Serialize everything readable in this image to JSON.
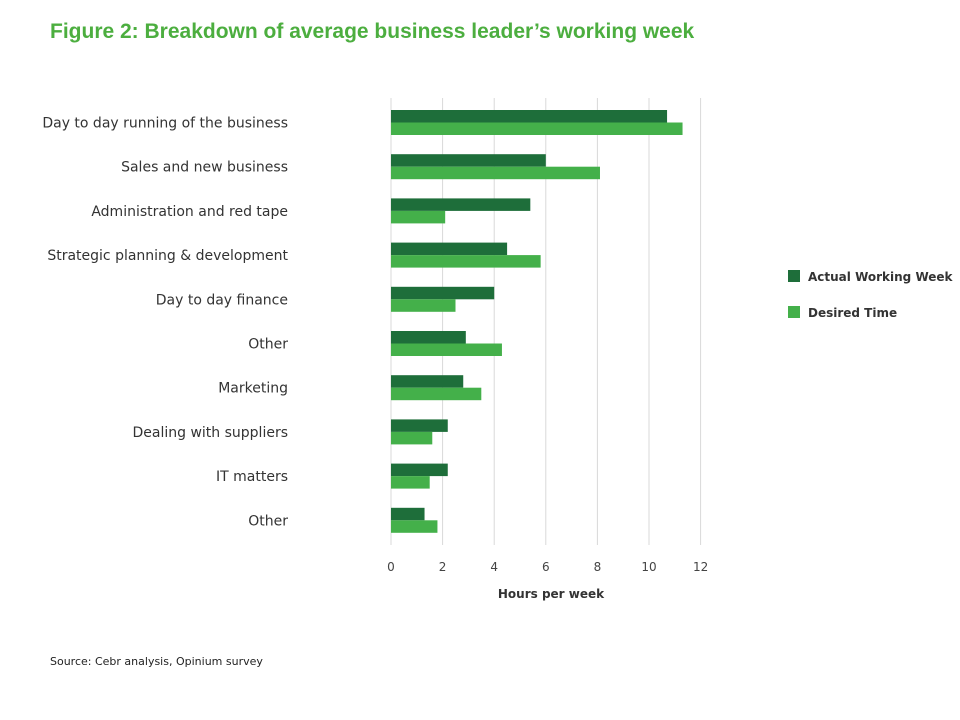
{
  "title": "Figure 2: Breakdown of average business leader’s working week",
  "source": "Source: Cebr analysis, Opinium survey",
  "colors": {
    "title": "#4cae3f",
    "actual": "#1e6e3a",
    "desired": "#44b04a",
    "grid": "#d9d9d9"
  },
  "chart_data": {
    "type": "bar",
    "orientation": "horizontal",
    "categories": [
      "Day to day running of the business",
      "Sales and new business",
      "Administration and red tape",
      "Strategic planning & development",
      "Day to day finance",
      "Other",
      "Marketing",
      "Dealing with suppliers",
      "IT matters",
      "Other"
    ],
    "series": [
      {
        "name": "Actual Working Week",
        "values": [
          10.7,
          6.0,
          5.4,
          4.5,
          4.0,
          2.9,
          2.8,
          2.2,
          2.2,
          1.3
        ]
      },
      {
        "name": "Desired Time",
        "values": [
          11.3,
          8.1,
          2.1,
          5.8,
          2.5,
          4.3,
          3.5,
          1.6,
          1.5,
          1.8
        ]
      }
    ],
    "xlabel": "Hours per week",
    "xlim": [
      0,
      12
    ],
    "xticks": [
      0,
      2,
      4,
      6,
      8,
      10,
      12
    ],
    "grid": true,
    "legend_position": "right"
  }
}
